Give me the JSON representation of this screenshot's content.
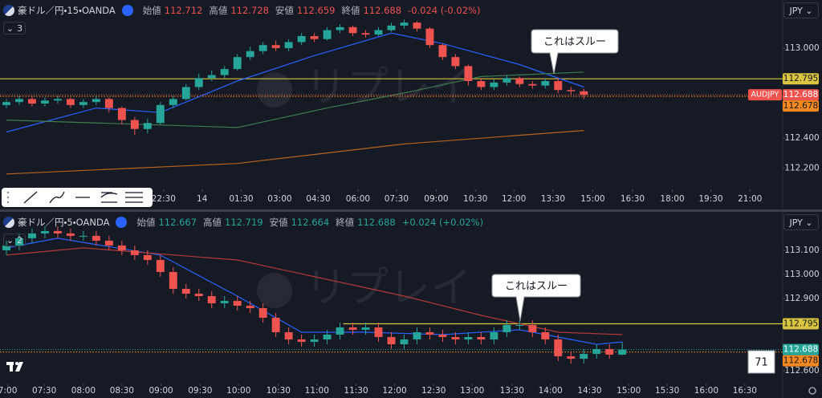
{
  "chart_data": [
    {
      "type": "candlestick",
      "title": "豪ドル／円・15・OANDA",
      "ohlc_labels": [
        "始値",
        "高値",
        "安値",
        "終値"
      ],
      "change": "-0.024 (-0.02%)",
      "indicator_count": 3,
      "currency": "JPY",
      "symbol_tag": "AUDJPY",
      "annotation": "これはスルー",
      "watermark": "リプレイ",
      "up_color": "#26a69a",
      "down_color": "#ef5350",
      "xlim": [
        -0.5,
        60.5
      ],
      "ylim": [
        112.057,
        113.321
      ],
      "xticks": [
        {
          "value": 12.25,
          "label": "22:30"
        },
        {
          "value": 15.25,
          "label": "14"
        },
        {
          "value": 18.3,
          "label": "01:30"
        },
        {
          "value": 21.3,
          "label": "03:00"
        },
        {
          "value": 24.3,
          "label": "04:30"
        },
        {
          "value": 27.4,
          "label": "06:00"
        },
        {
          "value": 30.4,
          "label": "07:30"
        },
        {
          "value": 33.5,
          "label": "09:00"
        },
        {
          "value": 36.55,
          "label": "10:30"
        },
        {
          "value": 39.55,
          "label": "12:00"
        },
        {
          "value": 42.6,
          "label": "13:30"
        },
        {
          "value": 45.7,
          "label": "15:00"
        },
        {
          "value": 48.8,
          "label": "16:30"
        },
        {
          "value": 51.9,
          "label": "18:00"
        },
        {
          "value": 54.9,
          "label": "19:30"
        },
        {
          "value": 57.95,
          "label": "21:00"
        }
      ],
      "yticks": [
        {
          "value": 113.0,
          "label": "113.000"
        },
        {
          "value": 112.4,
          "label": "112.400"
        },
        {
          "value": 112.2,
          "label": "112.200"
        }
      ],
      "open": [
        112.62,
        112.64,
        112.66,
        112.63,
        112.65,
        112.66,
        112.62,
        112.64,
        112.66,
        112.6,
        112.52,
        112.46,
        112.5,
        112.62,
        112.66,
        112.74,
        112.8,
        112.82,
        112.86,
        112.94,
        112.98,
        113.02,
        113.0,
        113.04,
        113.08,
        113.06,
        113.12,
        113.14,
        113.1,
        113.09,
        113.12,
        113.15,
        113.17,
        113.13,
        113.02,
        112.94,
        112.88,
        112.78,
        112.74,
        112.77,
        112.8,
        112.76,
        112.75,
        112.78,
        112.72,
        112.712
      ],
      "high": [
        112.66,
        112.68,
        112.68,
        112.67,
        112.68,
        112.67,
        112.66,
        112.68,
        112.67,
        112.61,
        112.54,
        112.53,
        112.64,
        112.68,
        112.76,
        112.83,
        112.85,
        112.88,
        112.96,
        113.01,
        113.04,
        113.05,
        113.06,
        113.1,
        113.1,
        113.14,
        113.16,
        113.15,
        113.12,
        113.14,
        113.17,
        113.19,
        113.18,
        113.14,
        113.03,
        112.96,
        112.89,
        112.8,
        112.79,
        112.82,
        112.81,
        112.78,
        112.8,
        112.8,
        112.74,
        112.728
      ],
      "low": [
        112.6,
        112.62,
        112.61,
        112.61,
        112.63,
        112.6,
        112.6,
        112.62,
        112.57,
        112.49,
        112.42,
        112.43,
        112.49,
        112.6,
        112.65,
        112.72,
        112.78,
        112.8,
        112.85,
        112.92,
        112.96,
        112.98,
        112.98,
        113.02,
        113.04,
        113.05,
        113.1,
        113.08,
        113.07,
        113.08,
        113.11,
        113.13,
        113.11,
        113.0,
        112.92,
        112.86,
        112.75,
        112.72,
        112.72,
        112.75,
        112.74,
        112.73,
        112.73,
        112.7,
        112.69,
        112.659
      ],
      "close": [
        112.64,
        112.66,
        112.63,
        112.65,
        112.66,
        112.62,
        112.64,
        112.66,
        112.6,
        112.52,
        112.46,
        112.5,
        112.62,
        112.66,
        112.74,
        112.8,
        112.82,
        112.86,
        112.94,
        112.98,
        113.02,
        113.0,
        113.04,
        113.08,
        113.06,
        113.12,
        113.14,
        113.1,
        113.09,
        113.12,
        113.15,
        113.17,
        113.13,
        113.02,
        112.94,
        112.88,
        112.78,
        112.74,
        112.77,
        112.8,
        112.76,
        112.75,
        112.78,
        112.72,
        112.712,
        112.688
      ],
      "series": [
        {
          "color": "#2962ff",
          "x": [
            0,
            7,
            12,
            18,
            24,
            30,
            34,
            40,
            45
          ],
          "values": [
            112.44,
            112.6,
            112.57,
            112.78,
            112.95,
            113.1,
            113.03,
            112.89,
            112.74
          ]
        },
        {
          "color": "#3f7d4e",
          "x": [
            0,
            18,
            25,
            31,
            37,
            45
          ],
          "values": [
            112.52,
            112.47,
            112.6,
            112.7,
            112.81,
            112.84
          ]
        },
        {
          "color": "#b8641f",
          "x": [
            0,
            18,
            31,
            45
          ],
          "values": [
            112.16,
            112.23,
            112.36,
            112.45
          ]
        }
      ],
      "hlines": [
        {
          "value": 112.795,
          "color": "#d9c53f",
          "style": "solid"
        },
        {
          "value": 112.678,
          "color": "#f5891f",
          "style": "dotted"
        }
      ]
    },
    {
      "type": "candlestick",
      "title": "豪ドル／円・5・OANDA",
      "ohlc_labels": [
        "始値",
        "高値",
        "安値",
        "終値"
      ],
      "change": "+0.024 (+0.02%)",
      "indicator_count": 2,
      "currency": "JPY",
      "annotation": "これはスルー",
      "watermark": "リプレイ",
      "counter": 71,
      "up_color": "#26a69a",
      "down_color": "#ef5350",
      "xlim": [
        -0.5,
        60.5
      ],
      "ylim": [
        112.547,
        113.253
      ],
      "xticks": [
        {
          "value": 0.1,
          "label": "7:00"
        },
        {
          "value": 2.95,
          "label": "07:30"
        },
        {
          "value": 6.0,
          "label": "08:00"
        },
        {
          "value": 9.0,
          "label": "08:30"
        },
        {
          "value": 12.05,
          "label": "09:00"
        },
        {
          "value": 15.1,
          "label": "09:30"
        },
        {
          "value": 18.1,
          "label": "10:00"
        },
        {
          "value": 21.2,
          "label": "10:30"
        },
        {
          "value": 24.2,
          "label": "11:00"
        },
        {
          "value": 27.25,
          "label": "11:30"
        },
        {
          "value": 30.25,
          "label": "12:00"
        },
        {
          "value": 33.3,
          "label": "12:30"
        },
        {
          "value": 36.3,
          "label": "13:00"
        },
        {
          "value": 39.4,
          "label": "13:30"
        },
        {
          "value": 42.4,
          "label": "14:00"
        },
        {
          "value": 45.45,
          "label": "14:30"
        },
        {
          "value": 48.5,
          "label": "15:00"
        },
        {
          "value": 51.5,
          "label": "15:30"
        },
        {
          "value": 54.55,
          "label": "16:00"
        },
        {
          "value": 57.55,
          "label": "16:30"
        }
      ],
      "yticks": [
        {
          "value": 113.1,
          "label": "113.100"
        },
        {
          "value": 113.0,
          "label": "113.000"
        },
        {
          "value": 112.9,
          "label": "112.900"
        },
        {
          "value": 112.6,
          "label": "112.600"
        }
      ],
      "open": [
        113.1,
        113.12,
        113.15,
        113.17,
        113.18,
        113.17,
        113.16,
        113.16,
        113.14,
        113.12,
        113.1,
        113.08,
        113.06,
        113.01,
        112.94,
        112.92,
        112.91,
        112.88,
        112.89,
        112.87,
        112.86,
        112.82,
        112.76,
        112.73,
        112.72,
        112.73,
        112.75,
        112.78,
        112.77,
        112.78,
        112.74,
        112.71,
        112.73,
        112.76,
        112.75,
        112.74,
        112.73,
        112.74,
        112.73,
        112.76,
        112.79,
        112.79,
        112.76,
        112.73,
        112.66,
        112.65,
        112.67,
        112.69,
        112.667
      ],
      "high": [
        113.14,
        113.17,
        113.19,
        113.2,
        113.2,
        113.19,
        113.18,
        113.18,
        113.16,
        113.14,
        113.12,
        113.1,
        113.08,
        113.03,
        112.96,
        112.94,
        112.93,
        112.91,
        112.91,
        112.89,
        112.88,
        112.84,
        112.78,
        112.75,
        112.75,
        112.77,
        112.8,
        112.8,
        112.8,
        112.8,
        112.76,
        112.75,
        112.78,
        112.78,
        112.77,
        112.76,
        112.76,
        112.76,
        112.78,
        112.81,
        112.81,
        112.81,
        112.78,
        112.75,
        112.68,
        112.69,
        112.71,
        112.71,
        112.719
      ],
      "low": [
        113.08,
        113.1,
        113.13,
        113.15,
        113.15,
        113.14,
        113.14,
        113.12,
        113.1,
        113.08,
        113.06,
        113.04,
        112.99,
        112.92,
        112.9,
        112.89,
        112.86,
        112.86,
        112.85,
        112.84,
        112.8,
        112.74,
        112.71,
        112.7,
        112.7,
        112.71,
        112.73,
        112.75,
        112.75,
        112.72,
        112.69,
        112.69,
        112.71,
        112.73,
        112.72,
        112.71,
        112.71,
        112.71,
        112.71,
        112.74,
        112.77,
        112.74,
        112.71,
        112.64,
        112.63,
        112.63,
        112.65,
        112.65,
        112.664
      ],
      "close": [
        113.12,
        113.15,
        113.17,
        113.18,
        113.17,
        113.16,
        113.16,
        113.14,
        113.12,
        113.1,
        113.08,
        113.06,
        113.01,
        112.94,
        112.92,
        112.91,
        112.88,
        112.89,
        112.87,
        112.86,
        112.82,
        112.76,
        112.73,
        112.72,
        112.73,
        112.75,
        112.78,
        112.77,
        112.78,
        112.74,
        112.71,
        112.73,
        112.76,
        112.75,
        112.74,
        112.73,
        112.74,
        112.73,
        112.76,
        112.79,
        112.79,
        112.76,
        112.73,
        112.66,
        112.65,
        112.67,
        112.69,
        112.667,
        112.688
      ],
      "series": [
        {
          "color": "#2962ff",
          "x": [
            0,
            4,
            12,
            18,
            23,
            28,
            34,
            40,
            46,
            48
          ],
          "values": [
            113.11,
            113.15,
            113.08,
            112.91,
            112.76,
            112.76,
            112.75,
            112.77,
            112.71,
            112.72
          ]
        },
        {
          "color": "#b33a3a",
          "x": [
            0,
            6,
            18,
            31,
            37,
            43,
            48
          ],
          "values": [
            113.08,
            113.11,
            113.06,
            112.91,
            112.83,
            112.76,
            112.75
          ]
        }
      ],
      "hlines": [
        {
          "value": 112.795,
          "color": "#d9c53f",
          "style": "solid",
          "from": 26.25
        },
        {
          "value": 112.678,
          "color": "#f5891f",
          "style": "dotted"
        }
      ]
    }
  ]
}
